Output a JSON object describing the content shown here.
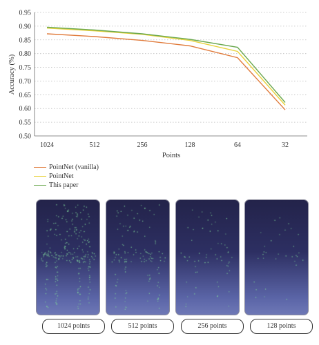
{
  "chart_data": {
    "type": "line",
    "categories": [
      "1024",
      "512",
      "256",
      "128",
      "64",
      "32"
    ],
    "xlabel": "Points",
    "ylabel": "Accuracy (%)",
    "ylim": [
      0.5,
      0.95
    ],
    "yticks": [
      "0.50",
      "0.55",
      "0.60",
      "0.65",
      "0.70",
      "0.75",
      "0.80",
      "0.85",
      "0.90",
      "0.95"
    ],
    "grid": "horizontal dotted",
    "series": [
      {
        "name": "PointNet (vanilla)",
        "color": "#e07a3a",
        "values": [
          0.872,
          0.862,
          0.848,
          0.828,
          0.785,
          0.595
        ]
      },
      {
        "name": "PointNet",
        "color": "#e8d23a",
        "values": [
          0.893,
          0.883,
          0.87,
          0.848,
          0.808,
          0.612
        ]
      },
      {
        "name": "This paper",
        "color": "#6aa84f",
        "values": [
          0.896,
          0.886,
          0.872,
          0.852,
          0.823,
          0.622
        ]
      }
    ]
  },
  "panels": [
    {
      "caption": "1024 points",
      "count": 1024
    },
    {
      "caption": "512 points",
      "count": 512
    },
    {
      "caption": "256 points",
      "count": 256
    },
    {
      "caption": "128 points",
      "count": 128
    }
  ],
  "colors": {
    "points": "#7fd39a",
    "panel_top": "#23234a",
    "panel_bottom": "#6e78b6"
  }
}
